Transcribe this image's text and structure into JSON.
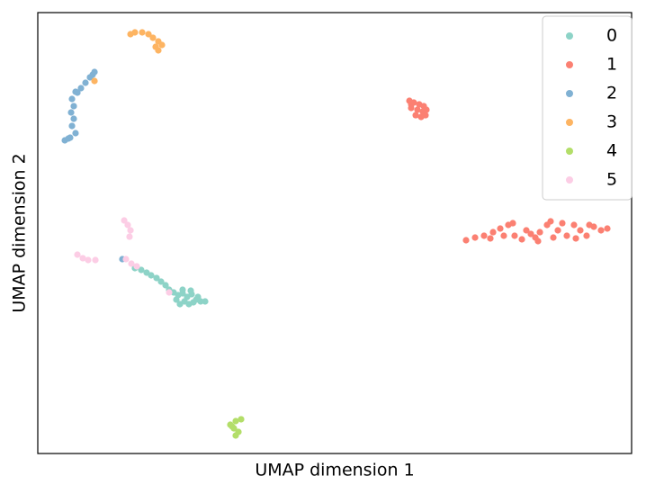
{
  "chart_data": {
    "type": "scatter",
    "xlabel": "UMAP dimension 1",
    "ylabel": "UMAP dimension 2",
    "xlim": [
      0,
      100
    ],
    "ylim": [
      0,
      100
    ],
    "grid": false,
    "legend": "upper right",
    "series": [
      {
        "name": "0",
        "color": "#8dd3c7",
        "x": [
          16.36,
          17.42,
          18.33,
          19.09,
          20.0,
          20.76,
          21.52,
          22.12,
          22.88,
          23.64,
          24.39,
          25.15,
          25.91,
          26.67,
          27.42,
          28.18,
          23.94,
          24.7,
          25.45,
          26.21,
          23.33,
          26.97,
          24.39,
          25.76
        ],
        "y": [
          42.04,
          41.63,
          41.02,
          40.41,
          39.8,
          38.98,
          38.16,
          37.14,
          36.53,
          35.92,
          36.33,
          35.51,
          36.12,
          34.9,
          34.49,
          34.49,
          33.88,
          34.49,
          33.88,
          34.29,
          34.9,
          35.51,
          37.14,
          36.94
        ]
      },
      {
        "name": "1",
        "color": "#fb8072",
        "x": [
          62.58,
          63.33,
          64.24,
          65.0,
          62.88,
          63.94,
          64.85,
          65.45,
          63.64,
          64.55,
          62.88,
          65.3,
          72.12,
          73.64,
          75.15,
          76.67,
          77.88,
          79.24,
          80.3,
          81.52,
          83.03,
          84.24,
          85.76,
          86.36,
          87.58,
          89.09,
          90.3,
          91.36,
          92.42,
          93.64,
          94.85,
          95.91,
          76.21,
          78.48,
          82.27,
          84.55,
          86.82,
          88.33,
          90.61,
          92.88,
          80.0,
          83.79
        ],
        "y": [
          80.0,
          79.59,
          79.18,
          78.78,
          78.37,
          77.96,
          77.55,
          77.96,
          76.73,
          76.33,
          79.18,
          76.73,
          48.37,
          48.98,
          49.39,
          50.2,
          51.02,
          51.84,
          49.39,
          48.57,
          49.8,
          48.16,
          51.84,
          52.65,
          50.61,
          49.39,
          51.84,
          50.61,
          49.39,
          51.43,
          50.61,
          51.02,
          48.78,
          49.39,
          50.61,
          50.2,
          48.98,
          52.24,
          48.78,
          51.84,
          52.24,
          48.98
        ]
      },
      {
        "name": "2",
        "color": "#80b1d3",
        "x": [
          9.55,
          8.79,
          8.03,
          7.27,
          6.36,
          5.76,
          6.06,
          5.61,
          6.06,
          5.76,
          6.36,
          5.45,
          4.55,
          5.15,
          6.67,
          9.24,
          14.24
        ],
        "y": [
          86.53,
          85.31,
          84.08,
          82.86,
          82.04,
          80.41,
          78.78,
          77.35,
          75.92,
          74.29,
          72.65,
          71.63,
          71.02,
          71.43,
          81.84,
          85.92,
          44.08
        ]
      },
      {
        "name": "3",
        "color": "#fdb462",
        "x": [
          15.61,
          16.36,
          17.58,
          18.64,
          19.39,
          20.3,
          20.91,
          20.3,
          19.85,
          9.55
        ],
        "y": [
          95.1,
          95.51,
          95.51,
          95.1,
          94.29,
          93.47,
          92.65,
          91.43,
          92.24,
          84.49
        ]
      },
      {
        "name": "4",
        "color": "#b3de69",
        "x": [
          32.42,
          33.33,
          34.24,
          33.03,
          33.79,
          33.33,
          32.73
        ],
        "y": [
          6.53,
          7.35,
          7.76,
          5.71,
          4.9,
          4.08,
          6.12
        ]
      },
      {
        "name": "5",
        "color": "#fccde5",
        "x": [
          14.55,
          15.15,
          15.61,
          15.45,
          6.67,
          7.58,
          8.48,
          9.7,
          14.85,
          15.76,
          16.67,
          22.12
        ],
        "y": [
          52.86,
          51.84,
          50.61,
          49.18,
          45.1,
          44.29,
          43.88,
          43.88,
          44.08,
          43.06,
          42.45,
          36.53
        ]
      }
    ]
  }
}
